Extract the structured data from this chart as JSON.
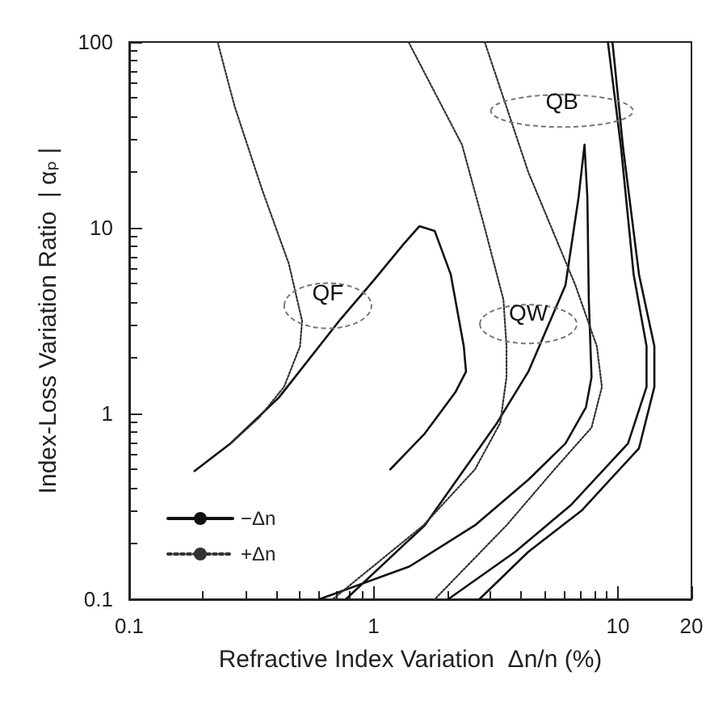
{
  "chart_data": {
    "type": "line",
    "xlabel": "Refractive Index Variation  Δn/n (%)",
    "ylabel": "Index-Loss Variation Ratio  | αₚ |",
    "log": "xy",
    "legend": "bottom left",
    "xlim": [
      0.1,
      20
    ],
    "xticks": [
      0.1,
      1,
      10,
      20
    ],
    "ylim": [
      0.1,
      100
    ],
    "yticks": [
      0.1,
      1,
      10,
      100
    ],
    "annotations": [
      "QF",
      "QW",
      "QB"
    ],
    "series": [
      {
        "name": "−Δn",
        "color": "#111111",
        "line_style": "solid",
        "x": [
          0.185,
          0.26,
          0.41,
          0.73,
          1.0,
          1.33,
          1.54,
          1.78,
          2.07,
          2.34,
          2.39,
          2.16,
          1.62,
          1.17
        ],
        "values": [
          0.49,
          0.69,
          1.22,
          3.2,
          5.2,
          8.2,
          10.2,
          9.6,
          5.6,
          2.3,
          1.68,
          1.3,
          0.78,
          0.5
        ]
      },
      {
        "name": "+Δn",
        "color": "#333333",
        "line_style": "dotted",
        "x": [
          0.23,
          0.27,
          0.35,
          0.45,
          0.51,
          0.5,
          0.43,
          0.34,
          0.26
        ],
        "values": [
          100,
          45,
          16,
          6.4,
          3.15,
          2.3,
          1.39,
          0.95,
          0.69
        ]
      },
      {
        "color": "#111111",
        "line_style": "solid",
        "x": [
          0.77,
          1.62,
          3.2,
          4.3,
          6.1,
          6.9,
          7.3,
          7.5,
          7.6,
          7.8,
          7.4,
          6.1,
          4.3,
          2.6,
          1.4,
          0.6
        ],
        "values": [
          0.1,
          0.25,
          0.89,
          1.68,
          4.9,
          14.5,
          28,
          14.5,
          4.1,
          1.57,
          1.08,
          0.69,
          0.44,
          0.25,
          0.15,
          0.1
        ]
      },
      {
        "color": "#333333",
        "line_style": "dotted",
        "x": [
          1.39,
          2.3,
          2.85,
          3.4,
          3.5,
          3.5,
          3.3,
          2.6,
          1.6,
          0.68
        ],
        "values": [
          100,
          28,
          10,
          4.1,
          2.3,
          1.57,
          0.89,
          0.5,
          0.25,
          0.1
        ]
      },
      {
        "color": "#333333",
        "line_style": "dotted",
        "x": [
          2.85,
          4.3,
          6.7,
          8.2,
          8.6,
          7.8,
          5.5,
          3.5,
          1.78
        ],
        "values": [
          100,
          19.9,
          4.9,
          2.3,
          1.39,
          0.84,
          0.5,
          0.25,
          0.1
        ]
      },
      {
        "color": "#111111",
        "line_style": "solid",
        "x": [
          9.5,
          10.5,
          12.2,
          14.1,
          14.1,
          12.2,
          7.1,
          4.3,
          2.71
        ],
        "values": [
          100,
          27,
          5.6,
          2.3,
          1.39,
          0.65,
          0.3,
          0.18,
          0.1
        ]
      },
      {
        "color": "#111111",
        "line_style": "solid",
        "x": [
          9.1,
          10.3,
          11.6,
          13.1,
          13.1,
          11.0,
          6.4,
          3.8,
          2.02
        ],
        "values": [
          100,
          27,
          5.6,
          2.3,
          1.39,
          0.69,
          0.32,
          0.18,
          0.1
        ]
      }
    ]
  }
}
